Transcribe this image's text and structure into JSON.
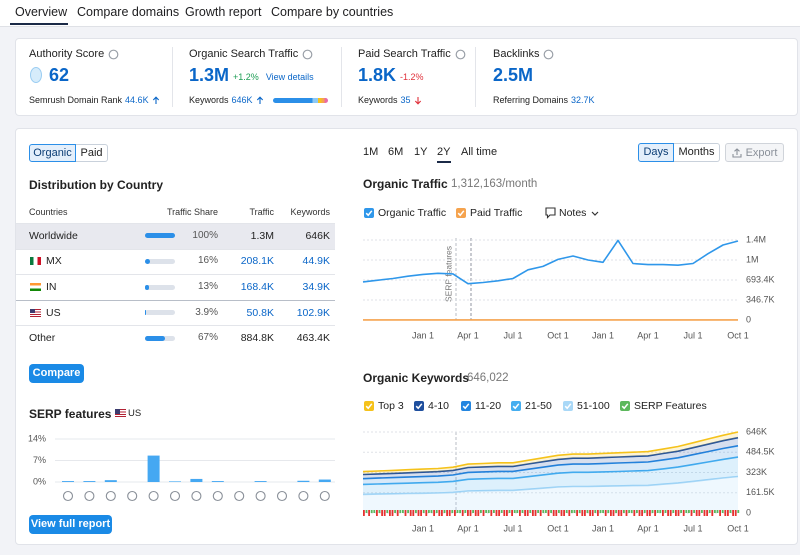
{
  "tabs": [
    "Overview",
    "Compare domains",
    "Growth report",
    "Compare by countries"
  ],
  "metrics": [
    {
      "title": "Authority Score",
      "value": "62",
      "sub_label": "Semrush Domain Rank",
      "sub_value": "44.6K"
    },
    {
      "title": "Organic Search Traffic",
      "value": "1.3M",
      "change": "+1.2%",
      "link": "View details",
      "sub_label": "Keywords",
      "sub_value": "646K"
    },
    {
      "title": "Paid Search Traffic",
      "value": "1.8K",
      "change": "-1.2%",
      "sub_label": "Keywords",
      "sub_value": "35"
    },
    {
      "title": "Backlinks",
      "value": "2.5M",
      "sub_label": "Referring Domains",
      "sub_value": "32.7K"
    }
  ],
  "toggle": [
    "Organic",
    "Paid"
  ],
  "distribution": {
    "title": "Distribution by Country",
    "columns": [
      "Countries",
      "Traffic Share",
      "Traffic",
      "Keywords"
    ],
    "rows": [
      {
        "country": "Worldwide",
        "share": {
          "value": 100,
          "label": "100%"
        },
        "traffic": "1.3M",
        "keywords": "646K"
      },
      {
        "country": "MX",
        "share": {
          "value": 16,
          "label": "16%"
        },
        "traffic": "208.1K",
        "keywords": "44.9K"
      },
      {
        "country": "IN",
        "share": {
          "value": 13,
          "label": "13%"
        },
        "traffic": "168.4K",
        "keywords": "34.9K"
      },
      {
        "country": "US",
        "share": {
          "value": 3.9,
          "label": "3.9%"
        },
        "traffic": "50.8K",
        "keywords": "102.9K"
      },
      {
        "country": "Other",
        "share": {
          "value": 67,
          "label": "67%"
        },
        "traffic": "884.8K",
        "keywords": "463.4K"
      }
    ]
  },
  "compare_button": "Compare",
  "serp": {
    "title": "SERP features",
    "country": "US",
    "chart_data": {
      "type": "bar",
      "color": "#45a8f2",
      "categories": [
        null,
        null,
        null,
        null,
        null,
        null,
        null,
        null,
        null,
        null,
        null,
        null,
        null
      ],
      "values": [
        0.3,
        0.3,
        0.6,
        0,
        8.6,
        0.2,
        1,
        0.3,
        0,
        0.3,
        0,
        0.4,
        0.8
      ],
      "ylim": [
        0,
        14
      ],
      "yticks": [
        {
          "value": 0,
          "label": "0%"
        },
        {
          "value": 7,
          "label": "7%"
        },
        {
          "value": 14,
          "label": "14%"
        }
      ],
      "grid": true
    }
  },
  "full_report_button": "View full report",
  "periods": [
    "1M",
    "6M",
    "1Y",
    "2Y",
    "All time"
  ],
  "granularity": [
    "Days",
    "Months"
  ],
  "export": "Export",
  "traffic": {
    "chart_data": {
      "type": "line",
      "title": "Organic Traffic",
      "subtitle": "1,312,163/month",
      "annotation": "SERP features",
      "notes_label": "Notes",
      "y_axis_side": "right",
      "grid": true,
      "categories": [
        null,
        null,
        null,
        null,
        "Jan 1",
        null,
        null,
        "Apr 1",
        null,
        null,
        "Jul 1",
        null,
        null,
        "Oct 1",
        null,
        null,
        "Jan 1",
        null,
        null,
        "Apr 1",
        null,
        null,
        "Jul 1",
        null,
        null,
        "Oct 1"
      ],
      "series": [
        {
          "name": "Organic Traffic",
          "color": "#2f97ea",
          "values": [
            660000,
            690000,
            720000,
            760000,
            790000,
            810000,
            800000,
            630000,
            650000,
            680000,
            720000,
            870000,
            930000,
            1050000,
            1110000,
            1040000,
            1000000,
            1380000,
            980000,
            960000,
            960000,
            950000,
            980000,
            1150000,
            1300000,
            1370000
          ]
        },
        {
          "name": "Paid Traffic",
          "color": "#f5a34e",
          "values": [
            1800,
            1800,
            1800,
            1800,
            1800,
            1800,
            1800,
            1800,
            1800,
            1800,
            1800,
            1800,
            1800,
            1800,
            1800,
            1800,
            1800,
            1800,
            1800,
            1800,
            1800,
            1800,
            1800,
            1800,
            1800,
            1800
          ]
        }
      ],
      "ylim": [
        0,
        1386800
      ],
      "yticks": [
        0,
        {
          "value": 346700,
          "label": "346.7K"
        },
        {
          "value": 693400,
          "label": "693.4K"
        },
        {
          "value": 1040100,
          "label": "1M"
        },
        {
          "value": 1386800,
          "label": "1.4M"
        }
      ]
    }
  },
  "keywords": {
    "chart_data": {
      "type": "area",
      "stacked": true,
      "title": "Organic Keywords",
      "subtitle": "646,022",
      "y_axis_side": "right",
      "grid": true,
      "serp_legend": {
        "name": "SERP Features",
        "color": "#5cb85c"
      },
      "categories": [
        null,
        null,
        null,
        null,
        "Jan 1",
        null,
        null,
        "Apr 1",
        null,
        null,
        "Jul 1",
        null,
        null,
        "Oct 1",
        null,
        null,
        "Jan 1",
        null,
        null,
        "Apr 1",
        null,
        null,
        "Jul 1",
        null,
        null,
        "Oct 1"
      ],
      "series": [
        {
          "name": "Top 3",
          "color": "#f5c21b",
          "values": [
            23100,
            23450,
            23800,
            24150,
            24500,
            24850,
            25550,
            27300,
            27650,
            28000,
            28000,
            29400,
            30800,
            32200,
            32900,
            32900,
            33250,
            33600,
            33950,
            34300,
            35700,
            37100,
            39200,
            41300,
            43400,
            45200
          ]
        },
        {
          "name": "4-10",
          "color": "#1f4f9e",
          "values": [
            33000,
            33500,
            34000,
            34500,
            35000,
            35500,
            36500,
            39000,
            39500,
            40000,
            40000,
            42000,
            44000,
            46000,
            47000,
            47000,
            47500,
            48000,
            48500,
            49000,
            51000,
            53000,
            56000,
            59000,
            62000,
            64600
          ]
        },
        {
          "name": "11-20",
          "color": "#2486e0",
          "values": [
            46200,
            46900,
            47600,
            48300,
            49000,
            49700,
            51100,
            54600,
            55300,
            56000,
            56000,
            58800,
            61600,
            64400,
            65800,
            65800,
            66500,
            67200,
            67900,
            68600,
            71400,
            74200,
            78400,
            82600,
            86800,
            90400
          ]
        },
        {
          "name": "21-50",
          "color": "#45aef0",
          "values": [
            79200,
            80400,
            81600,
            82800,
            84000,
            85200,
            87600,
            93600,
            94800,
            96000,
            96000,
            100800,
            105600,
            110400,
            112800,
            112800,
            114000,
            115200,
            116400,
            117600,
            122400,
            127200,
            134400,
            141600,
            148800,
            155000
          ]
        },
        {
          "name": "51-100",
          "color": "#a9d8f7",
          "values": [
            148500,
            150750,
            153000,
            155250,
            157500,
            159750,
            164250,
            175500,
            177750,
            180000,
            180000,
            189000,
            198000,
            207000,
            211500,
            211500,
            213750,
            216000,
            218250,
            220500,
            229500,
            238500,
            252000,
            265500,
            279000,
            290800
          ]
        }
      ],
      "ylim": [
        0,
        646000
      ],
      "yticks": [
        0,
        {
          "value": 161500,
          "label": "161.5K"
        },
        {
          "value": 323000,
          "label": "323K"
        },
        {
          "value": 484500,
          "label": "484.5K"
        },
        {
          "value": 646000,
          "label": "646K"
        }
      ]
    }
  }
}
